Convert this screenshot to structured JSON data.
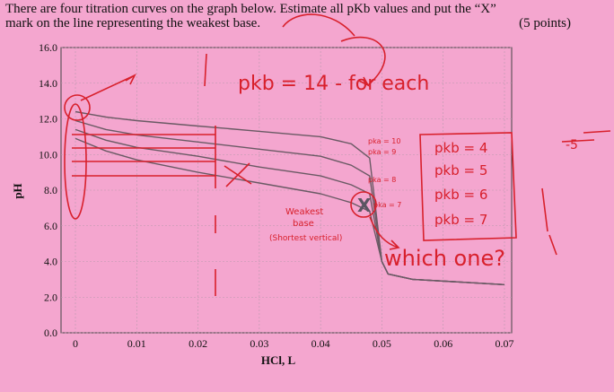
{
  "question": {
    "line1": "There are four titration curves on the graph below. Estimate all pKb values and put the “X”",
    "line2": "mark on the line representing the weakest base.",
    "points": "(5 points)"
  },
  "chart_data": {
    "type": "line",
    "xlabel": "HCl, L",
    "ylabel": "pH",
    "xlim": [
      0,
      0.07
    ],
    "ylim": [
      0,
      16
    ],
    "x_ticks": [
      "0",
      "0.01",
      "0.02",
      "0.03",
      "0.04",
      "0.05",
      "0.06",
      "0.07"
    ],
    "y_ticks": [
      "0.0",
      "2.0",
      "4.0",
      "6.0",
      "8.0",
      "10.0",
      "12.0",
      "14.0",
      "16.0"
    ],
    "grid": true,
    "series": [
      {
        "x": [
          0,
          0.005,
          0.01,
          0.02,
          0.03,
          0.04,
          0.045,
          0.048,
          0.05,
          0.051,
          0.055,
          0.07
        ],
        "y": [
          12.4,
          12.1,
          11.9,
          11.6,
          11.3,
          11.0,
          10.6,
          9.8,
          4.0,
          3.3,
          3.0,
          2.7
        ]
      },
      {
        "x": [
          0,
          0.005,
          0.01,
          0.02,
          0.03,
          0.04,
          0.045,
          0.048,
          0.05,
          0.051,
          0.055,
          0.07
        ],
        "y": [
          11.9,
          11.4,
          11.1,
          10.7,
          10.3,
          9.9,
          9.4,
          8.8,
          4.0,
          3.3,
          3.0,
          2.7
        ]
      },
      {
        "x": [
          0,
          0.005,
          0.01,
          0.02,
          0.03,
          0.04,
          0.045,
          0.048,
          0.05,
          0.051,
          0.055,
          0.07
        ],
        "y": [
          11.4,
          10.8,
          10.4,
          9.9,
          9.3,
          8.8,
          8.3,
          7.8,
          4.0,
          3.3,
          3.0,
          2.7
        ]
      },
      {
        "x": [
          0,
          0.005,
          0.01,
          0.02,
          0.03,
          0.04,
          0.045,
          0.048,
          0.05,
          0.051,
          0.055,
          0.07
        ],
        "y": [
          10.9,
          10.2,
          9.7,
          9.0,
          8.4,
          7.8,
          7.3,
          6.8,
          4.0,
          3.3,
          3.0,
          2.7
        ]
      }
    ]
  },
  "annotations": {
    "pkb_14": "pkb = 14 - for each",
    "small_labels": [
      "pka = 10",
      "pka = 9",
      "pka = 8",
      "pka = 7"
    ],
    "box_labels": [
      "pkb = 4",
      "pkb = 5",
      "pkb = 6",
      "pkb = 7"
    ],
    "weakest": [
      "Weakest",
      "base",
      "(Shortest vertical)"
    ],
    "which_one": "which one?",
    "score": "-5",
    "x_mark": "X"
  },
  "colors": {
    "background": "#f4a6cf",
    "ink_red": "#d8202c",
    "ink_gray": "#5b5562",
    "curve": "#6a5a64"
  }
}
